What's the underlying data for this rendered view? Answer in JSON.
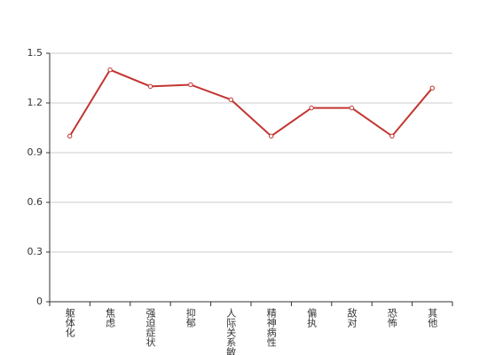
{
  "chart_data": {
    "type": "line",
    "categories": [
      "躯体化",
      "焦虑",
      "强迫症状",
      "抑郁",
      "人际关系敏感",
      "精神病性",
      "偏执",
      "敌对",
      "恐怖",
      "其他"
    ],
    "series": [
      {
        "color": "#c23531",
        "values": [
          1.0,
          1.4,
          1.3,
          1.31,
          1.22,
          1.0,
          1.17,
          1.17,
          1.0,
          1.29
        ]
      }
    ],
    "ylim": [
      0,
      1.5
    ],
    "yticks": [
      0,
      {
        "value": 0.3,
        "label": "0.3"
      },
      {
        "value": 0.6,
        "label": "0.6"
      },
      {
        "value": 0.9,
        "label": "0.9"
      },
      {
        "value": 1.2,
        "label": "1.2"
      },
      {
        "value": 1.5,
        "label": "1.5"
      }
    ],
    "grid": true
  }
}
